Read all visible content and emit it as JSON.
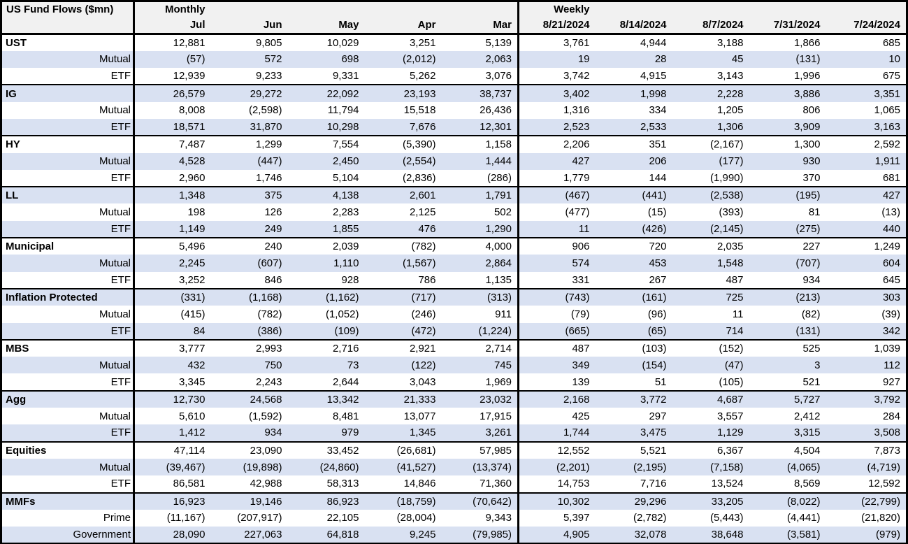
{
  "title": "US Fund Flows ($mn)",
  "colors": {
    "stripe_row_bg": "#d9e1f2",
    "header_bg": "#f1f1f1",
    "border": "#000000",
    "text": "#000000"
  },
  "sections": [
    {
      "label": "Monthly",
      "columns": [
        "Jul",
        "Jun",
        "May",
        "Apr",
        "Mar"
      ]
    },
    {
      "label": "Weekly",
      "columns": [
        "8/21/2024",
        "8/14/2024",
        "8/7/2024",
        "7/31/2024",
        "7/24/2024"
      ]
    }
  ],
  "groups": [
    {
      "rows": [
        {
          "label": "UST",
          "category": true,
          "monthly": [
            "12,881",
            "9,805",
            "10,029",
            "3,251",
            "5,139"
          ],
          "weekly": [
            "3,761",
            "4,944",
            "3,188",
            "1,866",
            "685"
          ]
        },
        {
          "label": "Mutual",
          "category": false,
          "monthly": [
            "(57)",
            "572",
            "698",
            "(2,012)",
            "2,063"
          ],
          "weekly": [
            "19",
            "28",
            "45",
            "(131)",
            "10"
          ]
        },
        {
          "label": "ETF",
          "category": false,
          "monthly": [
            "12,939",
            "9,233",
            "9,331",
            "5,262",
            "3,076"
          ],
          "weekly": [
            "3,742",
            "4,915",
            "3,143",
            "1,996",
            "675"
          ]
        }
      ]
    },
    {
      "rows": [
        {
          "label": "IG",
          "category": true,
          "monthly": [
            "26,579",
            "29,272",
            "22,092",
            "23,193",
            "38,737"
          ],
          "weekly": [
            "3,402",
            "1,998",
            "2,228",
            "3,886",
            "3,351"
          ]
        },
        {
          "label": "Mutual",
          "category": false,
          "monthly": [
            "8,008",
            "(2,598)",
            "11,794",
            "15,518",
            "26,436"
          ],
          "weekly": [
            "1,316",
            "334",
            "1,205",
            "806",
            "1,065"
          ]
        },
        {
          "label": "ETF",
          "category": false,
          "monthly": [
            "18,571",
            "31,870",
            "10,298",
            "7,676",
            "12,301"
          ],
          "weekly": [
            "2,523",
            "2,533",
            "1,306",
            "3,909",
            "3,163"
          ]
        }
      ]
    },
    {
      "rows": [
        {
          "label": "HY",
          "category": true,
          "monthly": [
            "7,487",
            "1,299",
            "7,554",
            "(5,390)",
            "1,158"
          ],
          "weekly": [
            "2,206",
            "351",
            "(2,167)",
            "1,300",
            "2,592"
          ]
        },
        {
          "label": "Mutual",
          "category": false,
          "monthly": [
            "4,528",
            "(447)",
            "2,450",
            "(2,554)",
            "1,444"
          ],
          "weekly": [
            "427",
            "206",
            "(177)",
            "930",
            "1,911"
          ]
        },
        {
          "label": "ETF",
          "category": false,
          "monthly": [
            "2,960",
            "1,746",
            "5,104",
            "(2,836)",
            "(286)"
          ],
          "weekly": [
            "1,779",
            "144",
            "(1,990)",
            "370",
            "681"
          ]
        }
      ]
    },
    {
      "rows": [
        {
          "label": "LL",
          "category": true,
          "monthly": [
            "1,348",
            "375",
            "4,138",
            "2,601",
            "1,791"
          ],
          "weekly": [
            "(467)",
            "(441)",
            "(2,538)",
            "(195)",
            "427"
          ]
        },
        {
          "label": "Mutual",
          "category": false,
          "monthly": [
            "198",
            "126",
            "2,283",
            "2,125",
            "502"
          ],
          "weekly": [
            "(477)",
            "(15)",
            "(393)",
            "81",
            "(13)"
          ]
        },
        {
          "label": "ETF",
          "category": false,
          "monthly": [
            "1,149",
            "249",
            "1,855",
            "476",
            "1,290"
          ],
          "weekly": [
            "11",
            "(426)",
            "(2,145)",
            "(275)",
            "440"
          ]
        }
      ]
    },
    {
      "rows": [
        {
          "label": "Municipal",
          "category": true,
          "monthly": [
            "5,496",
            "240",
            "2,039",
            "(782)",
            "4,000"
          ],
          "weekly": [
            "906",
            "720",
            "2,035",
            "227",
            "1,249"
          ]
        },
        {
          "label": "Mutual",
          "category": false,
          "monthly": [
            "2,245",
            "(607)",
            "1,110",
            "(1,567)",
            "2,864"
          ],
          "weekly": [
            "574",
            "453",
            "1,548",
            "(707)",
            "604"
          ]
        },
        {
          "label": "ETF",
          "category": false,
          "monthly": [
            "3,252",
            "846",
            "928",
            "786",
            "1,135"
          ],
          "weekly": [
            "331",
            "267",
            "487",
            "934",
            "645"
          ]
        }
      ]
    },
    {
      "rows": [
        {
          "label": "Inflation Protected",
          "category": true,
          "monthly": [
            "(331)",
            "(1,168)",
            "(1,162)",
            "(717)",
            "(313)"
          ],
          "weekly": [
            "(743)",
            "(161)",
            "725",
            "(213)",
            "303"
          ]
        },
        {
          "label": "Mutual",
          "category": false,
          "monthly": [
            "(415)",
            "(782)",
            "(1,052)",
            "(246)",
            "911"
          ],
          "weekly": [
            "(79)",
            "(96)",
            "11",
            "(82)",
            "(39)"
          ]
        },
        {
          "label": "ETF",
          "category": false,
          "monthly": [
            "84",
            "(386)",
            "(109)",
            "(472)",
            "(1,224)"
          ],
          "weekly": [
            "(665)",
            "(65)",
            "714",
            "(131)",
            "342"
          ]
        }
      ]
    },
    {
      "rows": [
        {
          "label": "MBS",
          "category": true,
          "monthly": [
            "3,777",
            "2,993",
            "2,716",
            "2,921",
            "2,714"
          ],
          "weekly": [
            "487",
            "(103)",
            "(152)",
            "525",
            "1,039"
          ]
        },
        {
          "label": "Mutual",
          "category": false,
          "monthly": [
            "432",
            "750",
            "73",
            "(122)",
            "745"
          ],
          "weekly": [
            "349",
            "(154)",
            "(47)",
            "3",
            "112"
          ]
        },
        {
          "label": "ETF",
          "category": false,
          "monthly": [
            "3,345",
            "2,243",
            "2,644",
            "3,043",
            "1,969"
          ],
          "weekly": [
            "139",
            "51",
            "(105)",
            "521",
            "927"
          ]
        }
      ]
    },
    {
      "rows": [
        {
          "label": "Agg",
          "category": true,
          "monthly": [
            "12,730",
            "24,568",
            "13,342",
            "21,333",
            "23,032"
          ],
          "weekly": [
            "2,168",
            "3,772",
            "4,687",
            "5,727",
            "3,792"
          ]
        },
        {
          "label": "Mutual",
          "category": false,
          "monthly": [
            "5,610",
            "(1,592)",
            "8,481",
            "13,077",
            "17,915"
          ],
          "weekly": [
            "425",
            "297",
            "3,557",
            "2,412",
            "284"
          ]
        },
        {
          "label": "ETF",
          "category": false,
          "monthly": [
            "1,412",
            "934",
            "979",
            "1,345",
            "3,261"
          ],
          "weekly": [
            "1,744",
            "3,475",
            "1,129",
            "3,315",
            "3,508"
          ]
        }
      ]
    },
    {
      "rows": [
        {
          "label": "Equities",
          "category": true,
          "monthly": [
            "47,114",
            "23,090",
            "33,452",
            "(26,681)",
            "57,985"
          ],
          "weekly": [
            "12,552",
            "5,521",
            "6,367",
            "4,504",
            "7,873"
          ]
        },
        {
          "label": "Mutual",
          "category": false,
          "monthly": [
            "(39,467)",
            "(19,898)",
            "(24,860)",
            "(41,527)",
            "(13,374)"
          ],
          "weekly": [
            "(2,201)",
            "(2,195)",
            "(7,158)",
            "(4,065)",
            "(4,719)"
          ]
        },
        {
          "label": "ETF",
          "category": false,
          "monthly": [
            "86,581",
            "42,988",
            "58,313",
            "14,846",
            "71,360"
          ],
          "weekly": [
            "14,753",
            "7,716",
            "13,524",
            "8,569",
            "12,592"
          ]
        }
      ]
    },
    {
      "rows": [
        {
          "label": "MMFs",
          "category": true,
          "monthly": [
            "16,923",
            "19,146",
            "86,923",
            "(18,759)",
            "(70,642)"
          ],
          "weekly": [
            "10,302",
            "29,296",
            "33,205",
            "(8,022)",
            "(22,799)"
          ]
        },
        {
          "label": "Prime",
          "category": false,
          "monthly": [
            "(11,167)",
            "(207,917)",
            "22,105",
            "(28,004)",
            "9,343"
          ],
          "weekly": [
            "5,397",
            "(2,782)",
            "(5,443)",
            "(4,441)",
            "(21,820)"
          ]
        },
        {
          "label": "Government",
          "category": false,
          "monthly": [
            "28,090",
            "227,063",
            "64,818",
            "9,245",
            "(79,985)"
          ],
          "weekly": [
            "4,905",
            "32,078",
            "38,648",
            "(3,581)",
            "(979)"
          ]
        }
      ]
    }
  ]
}
